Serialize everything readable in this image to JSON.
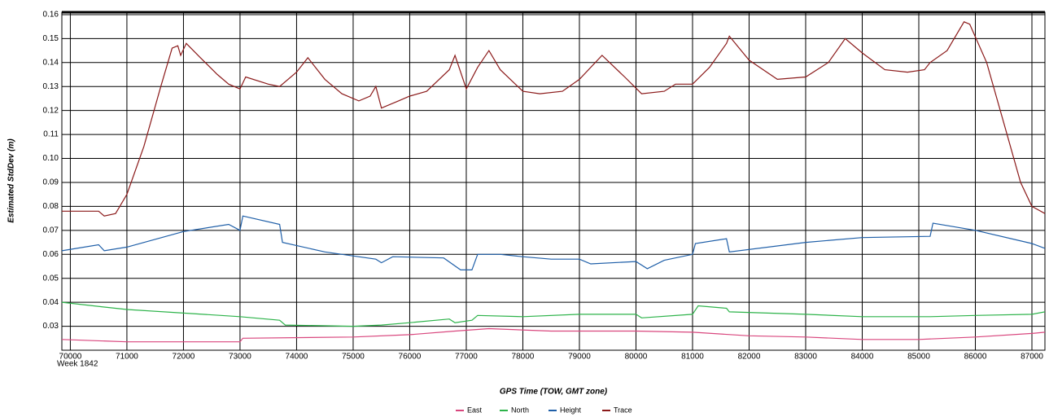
{
  "chart_data": {
    "type": "line",
    "xlabel": "GPS Time (TOW, GMT zone)",
    "ylabel": "Estimated StdDev (m)",
    "annotation": "Week 1842",
    "xlim": [
      69850,
      87230
    ],
    "ylim": [
      0.02,
      0.161
    ],
    "xticks": [
      70000,
      71000,
      72000,
      73000,
      74000,
      75000,
      76000,
      77000,
      78000,
      79000,
      80000,
      81000,
      82000,
      83000,
      84000,
      85000,
      86000,
      87000
    ],
    "yticks": [
      0.03,
      0.04,
      0.05,
      0.06,
      0.07,
      0.08,
      0.09,
      {
        "value": 0.1,
        "label": "0.10"
      },
      0.11,
      0.12,
      0.13,
      0.14,
      0.15,
      0.16
    ],
    "grid": true,
    "legend": "bottom",
    "series": [
      {
        "name": "East",
        "color": "#d9477e",
        "x": [
          69850,
          71000,
          73000,
          73050,
          75000,
          76000,
          76800,
          77400,
          78500,
          80000,
          81000,
          82000,
          83000,
          84000,
          85000,
          86000,
          87000,
          87230
        ],
        "values": [
          0.0245,
          0.0235,
          0.0235,
          0.025,
          0.0255,
          0.0265,
          0.028,
          0.029,
          0.028,
          0.028,
          0.0275,
          0.026,
          0.0255,
          0.0245,
          0.0245,
          0.0255,
          0.027,
          0.0275
        ]
      },
      {
        "name": "North",
        "color": "#2db34a",
        "x": [
          69850,
          70600,
          71000,
          72000,
          73000,
          73700,
          73800,
          75000,
          75500,
          76000,
          76700,
          76800,
          77100,
          77200,
          78000,
          79000,
          80000,
          80100,
          81000,
          81100,
          81600,
          81650,
          83000,
          84000,
          85200,
          86000,
          87000,
          87230
        ],
        "values": [
          0.04,
          0.038,
          0.037,
          0.0355,
          0.034,
          0.0325,
          0.0305,
          0.03,
          0.0305,
          0.0315,
          0.033,
          0.0315,
          0.0325,
          0.0345,
          0.034,
          0.035,
          0.035,
          0.0335,
          0.035,
          0.0385,
          0.0375,
          0.036,
          0.035,
          0.034,
          0.034,
          0.0345,
          0.035,
          0.036
        ]
      },
      {
        "name": "Height",
        "color": "#1f5fa8",
        "x": [
          69850,
          70500,
          70600,
          71000,
          72000,
          72800,
          73000,
          73050,
          73700,
          73750,
          74500,
          75400,
          75500,
          75700,
          76600,
          76900,
          77100,
          77200,
          77600,
          78000,
          78500,
          79000,
          79200,
          80000,
          80200,
          80500,
          81000,
          81050,
          81600,
          81650,
          83000,
          84000,
          85200,
          85250,
          86000,
          87000,
          87230
        ],
        "values": [
          0.0615,
          0.064,
          0.0615,
          0.063,
          0.0695,
          0.0725,
          0.07,
          0.076,
          0.0725,
          0.065,
          0.061,
          0.058,
          0.0565,
          0.059,
          0.0585,
          0.0535,
          0.0535,
          0.06,
          0.06,
          0.059,
          0.058,
          0.058,
          0.056,
          0.057,
          0.054,
          0.0575,
          0.06,
          0.0645,
          0.0665,
          0.061,
          0.065,
          0.067,
          0.0675,
          0.073,
          0.07,
          0.0645,
          0.0625
        ]
      },
      {
        "name": "Trace",
        "color": "#8b1a1a",
        "x": [
          69850,
          70500,
          70600,
          70800,
          71000,
          71300,
          71600,
          71800,
          71900,
          71950,
          72050,
          72300,
          72600,
          72800,
          73000,
          73100,
          73500,
          73700,
          74000,
          74200,
          74500,
          74800,
          75100,
          75300,
          75400,
          75500,
          75800,
          76000,
          76300,
          76700,
          76800,
          77000,
          77200,
          77400,
          77600,
          78000,
          78300,
          78700,
          79000,
          79400,
          79800,
          80100,
          80500,
          80700,
          81000,
          81300,
          81600,
          81650,
          82000,
          82500,
          83000,
          83400,
          83700,
          84000,
          84400,
          84800,
          85100,
          85200,
          85500,
          85800,
          85900,
          86200,
          86500,
          86800,
          87000,
          87230
        ],
        "values": [
          0.078,
          0.078,
          0.076,
          0.077,
          0.085,
          0.105,
          0.13,
          0.146,
          0.147,
          0.143,
          0.148,
          0.142,
          0.135,
          0.131,
          0.129,
          0.134,
          0.131,
          0.13,
          0.136,
          0.142,
          0.133,
          0.127,
          0.124,
          0.126,
          0.13,
          0.121,
          0.124,
          0.126,
          0.128,
          0.137,
          0.143,
          0.129,
          0.138,
          0.145,
          0.137,
          0.128,
          0.127,
          0.128,
          0.133,
          0.143,
          0.134,
          0.127,
          0.128,
          0.131,
          0.131,
          0.138,
          0.148,
          0.151,
          0.141,
          0.133,
          0.134,
          0.14,
          0.15,
          0.144,
          0.137,
          0.136,
          0.137,
          0.14,
          0.145,
          0.157,
          0.156,
          0.14,
          0.115,
          0.09,
          0.08,
          0.077
        ]
      }
    ]
  }
}
